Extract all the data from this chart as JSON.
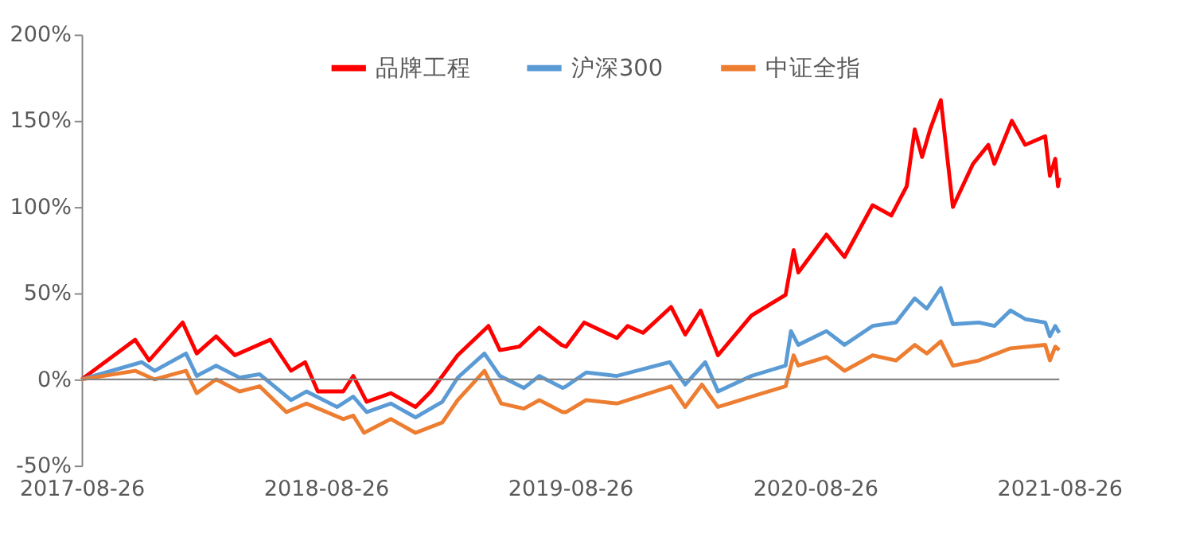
{
  "chart_data": {
    "type": "line",
    "series": [
      {
        "name": "品牌工程",
        "color": "#ff0000",
        "x": [
          "2017-08-26",
          "2017-11-14",
          "2017-12-05",
          "2018-01-24",
          "2018-02-14",
          "2018-03-15",
          "2018-04-12",
          "2018-06-04",
          "2018-07-05",
          "2018-07-26",
          "2018-08-14",
          "2018-09-21",
          "2018-10-06",
          "2018-10-26",
          "2018-12-01",
          "2019-01-07",
          "2019-01-30",
          "2019-03-11",
          "2019-04-26",
          "2019-05-13",
          "2019-06-11",
          "2019-07-11",
          "2019-08-13",
          "2019-08-20",
          "2019-09-16",
          "2019-11-04",
          "2019-11-20",
          "2019-12-13",
          "2020-01-24",
          "2020-02-14",
          "2020-03-08",
          "2020-04-03",
          "2020-05-23",
          "2020-07-13",
          "2020-07-25",
          "2020-08-01",
          "2020-09-12",
          "2020-10-09",
          "2020-11-20",
          "2020-12-18",
          "2021-01-10",
          "2021-01-22",
          "2021-02-02",
          "2021-02-14",
          "2021-03-02",
          "2021-03-20",
          "2021-04-19",
          "2021-05-12",
          "2021-05-21",
          "2021-06-16",
          "2021-07-06",
          "2021-08-05",
          "2021-08-12",
          "2021-08-20",
          "2021-08-24",
          "2021-08-26"
        ],
        "values": [
          0,
          23,
          11,
          33,
          15,
          25,
          14,
          23,
          5,
          10,
          -7,
          -7,
          2,
          -13,
          -8,
          -16,
          -7,
          14,
          31,
          17,
          19,
          30,
          20,
          19,
          33,
          24,
          31,
          27,
          42,
          26,
          40,
          14,
          37,
          49,
          75,
          62,
          84,
          71,
          101,
          95,
          112,
          145,
          129,
          145,
          162,
          100,
          125,
          136,
          125,
          150,
          136,
          141,
          118,
          128,
          112,
          117
        ]
      },
      {
        "name": "沪深300",
        "color": "#5b9bd5",
        "x": [
          "2017-08-26",
          "2017-11-24",
          "2017-12-13",
          "2018-01-29",
          "2018-02-14",
          "2018-03-15",
          "2018-04-19",
          "2018-05-19",
          "2018-07-05",
          "2018-07-28",
          "2018-09-12",
          "2018-10-06",
          "2018-10-26",
          "2018-12-01",
          "2019-01-07",
          "2019-02-16",
          "2019-03-11",
          "2019-04-20",
          "2019-05-13",
          "2019-06-18",
          "2019-07-11",
          "2019-08-15",
          "2019-08-20",
          "2019-09-19",
          "2019-11-04",
          "2020-01-22",
          "2020-02-14",
          "2020-03-15",
          "2020-04-03",
          "2020-05-23",
          "2020-07-13",
          "2020-07-21",
          "2020-08-01",
          "2020-09-12",
          "2020-10-09",
          "2020-11-20",
          "2020-12-25",
          "2021-01-22",
          "2021-02-09",
          "2021-03-02",
          "2021-03-20",
          "2021-04-28",
          "2021-05-21",
          "2021-06-14",
          "2021-07-06",
          "2021-08-05",
          "2021-08-12",
          "2021-08-20",
          "2021-08-26"
        ],
        "values": [
          0,
          10,
          5,
          15,
          2,
          8,
          1,
          3,
          -12,
          -7,
          -16,
          -10,
          -19,
          -14,
          -22,
          -13,
          1,
          15,
          2,
          -5,
          2,
          -5,
          -4,
          4,
          2,
          10,
          -3,
          10,
          -7,
          2,
          8,
          28,
          20,
          28,
          20,
          31,
          33,
          47,
          41,
          53,
          32,
          33,
          31,
          40,
          35,
          33,
          25,
          31,
          27
        ]
      },
      {
        "name": "中证全指",
        "color": "#ed7d31",
        "x": [
          "2017-08-26",
          "2017-11-14",
          "2017-12-13",
          "2018-01-29",
          "2018-02-14",
          "2018-03-15",
          "2018-04-19",
          "2018-05-19",
          "2018-06-28",
          "2018-07-28",
          "2018-09-21",
          "2018-10-06",
          "2018-10-22",
          "2018-12-01",
          "2019-01-07",
          "2019-02-16",
          "2019-03-11",
          "2019-04-20",
          "2019-05-15",
          "2019-06-18",
          "2019-07-11",
          "2019-08-15",
          "2019-08-20",
          "2019-09-19",
          "2019-11-04",
          "2020-01-24",
          "2020-02-14",
          "2020-03-10",
          "2020-04-03",
          "2020-05-23",
          "2020-07-13",
          "2020-07-25",
          "2020-08-01",
          "2020-09-12",
          "2020-10-09",
          "2020-11-20",
          "2020-12-25",
          "2021-01-22",
          "2021-02-09",
          "2021-03-02",
          "2021-03-20",
          "2021-04-28",
          "2021-06-14",
          "2021-08-05",
          "2021-08-12",
          "2021-08-20",
          "2021-08-26"
        ],
        "values": [
          0,
          5,
          0,
          5,
          -8,
          0,
          -7,
          -4,
          -19,
          -14,
          -23,
          -21,
          -31,
          -23,
          -31,
          -25,
          -12,
          5,
          -14,
          -17,
          -12,
          -19,
          -19,
          -12,
          -14,
          -4,
          -16,
          -3,
          -16,
          -10,
          -4,
          14,
          8,
          13,
          5,
          14,
          11,
          20,
          15,
          22,
          8,
          11,
          18,
          20,
          11,
          19,
          17
        ]
      }
    ],
    "xlim": [
      "2017-08-26",
      "2021-08-26"
    ],
    "xticks": [
      "2017-08-26",
      "2018-08-26",
      "2019-08-26",
      "2020-08-26",
      "2021-08-26"
    ],
    "ylim": [
      -50,
      200
    ],
    "yticks": [
      {
        "value": -50,
        "label": "-50%"
      },
      {
        "value": 0,
        "label": "0%"
      },
      {
        "value": 50,
        "label": "50%"
      },
      {
        "value": 100,
        "label": "100%"
      },
      {
        "value": 150,
        "label": "150%"
      },
      {
        "value": 200,
        "label": "200%"
      }
    ],
    "ref_lines": [
      {
        "axis": "y",
        "value": 0,
        "color": "#868686"
      }
    ],
    "legend": "top",
    "grid": false,
    "marker": "none",
    "line_style": "solid"
  }
}
